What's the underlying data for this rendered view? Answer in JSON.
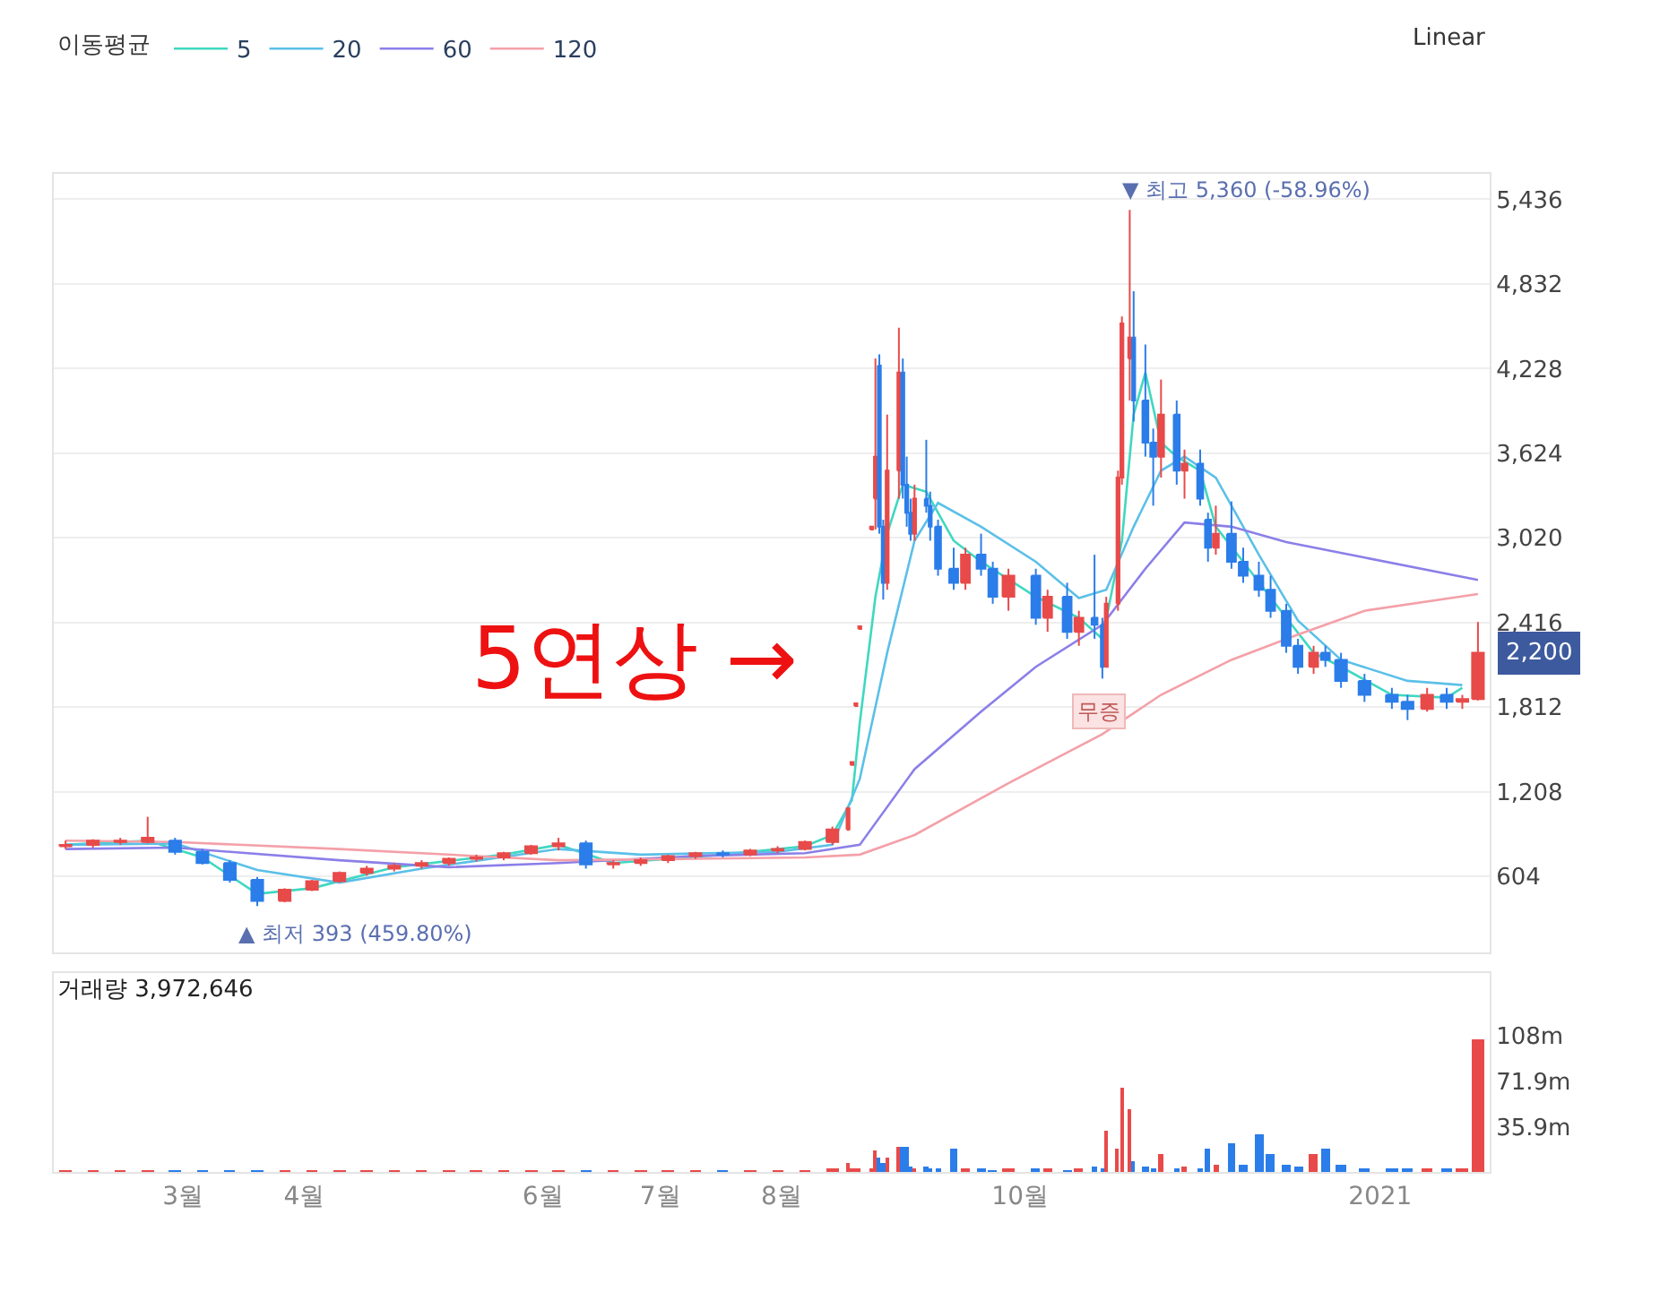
{
  "chart_data": [
    {
      "type": "candlestick",
      "legend_title": "이동평균",
      "legend": "top left",
      "grid": "y",
      "tick_labels": "y",
      "xlim": [
        "2020-01-28",
        "2021-01-29"
      ],
      "ylim": [
        60,
        5620
      ],
      "yticks": [
        {
          "value": 604,
          "label": "604"
        },
        {
          "value": 1208,
          "label": "1,208"
        },
        {
          "value": 1812,
          "label": "1,812"
        },
        {
          "value": 2416,
          "label": "2,416"
        },
        {
          "value": 3020,
          "label": "3,020"
        },
        {
          "value": 3624,
          "label": "3,624"
        },
        {
          "value": 4228,
          "label": "4,228"
        },
        {
          "value": 4832,
          "label": "4,832"
        },
        {
          "value": 5436,
          "label": "5,436"
        }
      ],
      "x": [
        "2020-01-31",
        "2020-02-07",
        "2020-02-14",
        "2020-02-21",
        "2020-02-28",
        "2020-03-06",
        "2020-03-13",
        "2020-03-20",
        "2020-03-27",
        "2020-04-03",
        "2020-04-10",
        "2020-04-17",
        "2020-04-24",
        "2020-05-01",
        "2020-05-08",
        "2020-05-15",
        "2020-05-22",
        "2020-05-29",
        "2020-06-05",
        "2020-06-12",
        "2020-06-19",
        "2020-06-26",
        "2020-07-03",
        "2020-07-10",
        "2020-07-17",
        "2020-07-24",
        "2020-07-31",
        "2020-08-07",
        "2020-08-14",
        "2020-08-18",
        "2020-08-19",
        "2020-08-20",
        "2020-08-21",
        "2020-08-24",
        "2020-08-25",
        "2020-08-26",
        "2020-08-27",
        "2020-08-28",
        "2020-08-31",
        "2020-09-01",
        "2020-09-02",
        "2020-09-03",
        "2020-09-04",
        "2020-09-07",
        "2020-09-08",
        "2020-09-10",
        "2020-09-14",
        "2020-09-17",
        "2020-09-21",
        "2020-09-24",
        "2020-09-28",
        "2020-10-05",
        "2020-10-08",
        "2020-10-13",
        "2020-10-16",
        "2020-10-20",
        "2020-10-22",
        "2020-10-23",
        "2020-10-26",
        "2020-10-27",
        "2020-10-29",
        "2020-10-30",
        "2020-11-02",
        "2020-11-04",
        "2020-11-06",
        "2020-11-10",
        "2020-11-12",
        "2020-11-16",
        "2020-11-18",
        "2020-11-20",
        "2020-11-24",
        "2020-11-27",
        "2020-12-01",
        "2020-12-04",
        "2020-12-08",
        "2020-12-11",
        "2020-12-15",
        "2020-12-18",
        "2020-12-22",
        "2020-12-28",
        "2021-01-04",
        "2021-01-08",
        "2021-01-13",
        "2021-01-18",
        "2021-01-22",
        "2021-01-26"
      ],
      "ohlc": [
        [
          820,
          860,
          800,
          830
        ],
        [
          830,
          870,
          810,
          860
        ],
        [
          850,
          880,
          830,
          860
        ],
        [
          850,
          1030,
          840,
          880
        ],
        [
          860,
          880,
          760,
          780
        ],
        [
          780,
          800,
          690,
          700
        ],
        [
          700,
          720,
          560,
          580
        ],
        [
          580,
          600,
          393,
          430
        ],
        [
          430,
          520,
          420,
          510
        ],
        [
          510,
          580,
          500,
          570
        ],
        [
          570,
          640,
          560,
          630
        ],
        [
          630,
          680,
          610,
          660
        ],
        [
          660,
          700,
          640,
          680
        ],
        [
          680,
          720,
          660,
          700
        ],
        [
          700,
          740,
          680,
          730
        ],
        [
          730,
          760,
          710,
          740
        ],
        [
          740,
          780,
          720,
          770
        ],
        [
          770,
          830,
          760,
          820
        ],
        [
          820,
          880,
          790,
          840
        ],
        [
          840,
          860,
          660,
          690
        ],
        [
          690,
          720,
          660,
          700
        ],
        [
          700,
          740,
          680,
          720
        ],
        [
          720,
          760,
          700,
          750
        ],
        [
          750,
          780,
          730,
          770
        ],
        [
          770,
          790,
          740,
          760
        ],
        [
          760,
          800,
          750,
          790
        ],
        [
          790,
          820,
          770,
          800
        ],
        [
          800,
          860,
          790,
          850
        ],
        [
          850,
          960,
          830,
          940
        ],
        [
          940,
          1100,
          930,
          1090
        ],
        [
          1400,
          1420,
          1400,
          1420
        ],
        [
          1820,
          1840,
          1820,
          1840
        ],
        [
          2370,
          2390,
          2370,
          2390
        ],
        [
          3080,
          3100,
          3080,
          3100
        ],
        [
          3300,
          4300,
          3080,
          3600
        ],
        [
          4250,
          4330,
          3050,
          3100
        ],
        [
          3100,
          3150,
          2580,
          2700
        ],
        [
          2700,
          3900,
          2650,
          3500
        ],
        [
          3500,
          4520,
          3300,
          4200
        ],
        [
          4200,
          4300,
          3300,
          3400
        ],
        [
          3400,
          3600,
          3100,
          3200
        ],
        [
          3200,
          3300,
          3000,
          3050
        ],
        [
          3050,
          3400,
          3000,
          3300
        ],
        [
          3300,
          3720,
          3200,
          3250
        ],
        [
          3250,
          3350,
          3000,
          3100
        ],
        [
          3100,
          3150,
          2750,
          2800
        ],
        [
          2800,
          2950,
          2650,
          2700
        ],
        [
          2700,
          2950,
          2650,
          2900
        ],
        [
          2900,
          3050,
          2750,
          2800
        ],
        [
          2800,
          2850,
          2550,
          2600
        ],
        [
          2600,
          2800,
          2500,
          2750
        ],
        [
          2750,
          2800,
          2400,
          2450
        ],
        [
          2450,
          2650,
          2350,
          2600
        ],
        [
          2600,
          2700,
          2300,
          2350
        ],
        [
          2350,
          2500,
          2250,
          2450
        ],
        [
          2450,
          2900,
          2300,
          2400
        ],
        [
          2400,
          2450,
          2016,
          2100
        ],
        [
          2100,
          2600,
          2100,
          2550
        ],
        [
          2550,
          3500,
          2500,
          3450
        ],
        [
          3450,
          4600,
          3400,
          4550
        ],
        [
          4300,
          5360,
          4000,
          4450
        ],
        [
          4450,
          4780,
          3850,
          4000
        ],
        [
          4000,
          4400,
          3600,
          3700
        ],
        [
          3700,
          3800,
          3250,
          3600
        ],
        [
          3600,
          4150,
          3450,
          3900
        ],
        [
          3900,
          4000,
          3400,
          3500
        ],
        [
          3500,
          3650,
          3300,
          3550
        ],
        [
          3550,
          3650,
          3250,
          3300
        ],
        [
          3150,
          3200,
          2850,
          2950
        ],
        [
          2950,
          3250,
          2900,
          3050
        ],
        [
          3050,
          3280,
          2800,
          2850
        ],
        [
          2850,
          2950,
          2700,
          2750
        ],
        [
          2750,
          2850,
          2600,
          2650
        ],
        [
          2650,
          2750,
          2450,
          2500
        ],
        [
          2500,
          2550,
          2200,
          2250
        ],
        [
          2250,
          2300,
          2050,
          2100
        ],
        [
          2100,
          2250,
          2050,
          2200
        ],
        [
          2200,
          2250,
          2100,
          2150
        ],
        [
          2150,
          2200,
          1950,
          2000
        ],
        [
          2000,
          2050,
          1850,
          1900
        ],
        [
          1900,
          1950,
          1800,
          1850
        ],
        [
          1850,
          1900,
          1720,
          1800
        ],
        [
          1800,
          1950,
          1780,
          1900
        ],
        [
          1900,
          1950,
          1800,
          1850
        ],
        [
          1850,
          1900,
          1800,
          1870
        ],
        [
          1870,
          2420,
          1860,
          2200
        ]
      ],
      "colors": [
        "#e84a4a",
        "#e84a4a",
        "#e84a4a",
        "#e84a4a",
        "#2b7de9",
        "#2b7de9",
        "#2b7de9",
        "#2b7de9",
        "#e84a4a",
        "#e84a4a",
        "#e84a4a",
        "#e84a4a",
        "#e84a4a",
        "#e84a4a",
        "#e84a4a",
        "#e84a4a",
        "#e84a4a",
        "#e84a4a",
        "#e84a4a",
        "#2b7de9",
        "#e84a4a",
        "#e84a4a",
        "#e84a4a",
        "#e84a4a",
        "#2b7de9",
        "#e84a4a",
        "#e84a4a",
        "#e84a4a",
        "#e84a4a",
        "#e84a4a",
        "#e84a4a",
        "#e84a4a",
        "#e84a4a",
        "#e84a4a",
        "#e84a4a",
        "#2b7de9",
        "#2b7de9",
        "#e84a4a",
        "#e84a4a",
        "#2b7de9",
        "#2b7de9",
        "#2b7de9",
        "#e84a4a",
        "#2b7de9",
        "#2b7de9",
        "#2b7de9",
        "#2b7de9",
        "#e84a4a",
        "#2b7de9",
        "#2b7de9",
        "#e84a4a",
        "#2b7de9",
        "#e84a4a",
        "#2b7de9",
        "#e84a4a",
        "#2b7de9",
        "#2b7de9",
        "#e84a4a",
        "#e84a4a",
        "#e84a4a",
        "#e84a4a",
        "#2b7de9",
        "#2b7de9",
        "#2b7de9",
        "#e84a4a",
        "#2b7de9",
        "#e84a4a",
        "#2b7de9",
        "#2b7de9",
        "#e84a4a",
        "#2b7de9",
        "#2b7de9",
        "#2b7de9",
        "#2b7de9",
        "#2b7de9",
        "#2b7de9",
        "#e84a4a",
        "#2b7de9",
        "#2b7de9",
        "#2b7de9",
        "#2b7de9",
        "#2b7de9",
        "#e84a4a",
        "#2b7de9",
        "#e84a4a",
        "#e84a4a"
      ],
      "series": [
        {
          "type": "line",
          "name": "5",
          "color": "#3fd8c0",
          "x": [
            "2020-01-31",
            "2020-02-21",
            "2020-03-06",
            "2020-03-20",
            "2020-04-03",
            "2020-04-24",
            "2020-05-22",
            "2020-06-05",
            "2020-06-19",
            "2020-07-17",
            "2020-08-07",
            "2020-08-14",
            "2020-08-19",
            "2020-08-21",
            "2020-08-25",
            "2020-08-28",
            "2020-09-01",
            "2020-09-07",
            "2020-09-14",
            "2020-09-21",
            "2020-10-05",
            "2020-10-16",
            "2020-10-22",
            "2020-10-27",
            "2020-10-30",
            "2020-11-02",
            "2020-11-06",
            "2020-11-10",
            "2020-11-16",
            "2020-11-20",
            "2020-11-27",
            "2020-12-08",
            "2020-12-15",
            "2020-12-22",
            "2021-01-04",
            "2021-01-18",
            "2021-01-22"
          ],
          "values": [
            830,
            860,
            740,
            480,
            520,
            670,
            760,
            830,
            700,
            760,
            820,
            900,
            1150,
            1700,
            2600,
            3050,
            3400,
            3350,
            3000,
            2850,
            2600,
            2450,
            2300,
            3000,
            3900,
            4200,
            3700,
            3600,
            3500,
            3100,
            2850,
            2450,
            2200,
            2100,
            1900,
            1880,
            1950
          ]
        },
        {
          "type": "line",
          "name": "20",
          "color": "#5bc0e8",
          "x": [
            "2020-01-31",
            "2020-02-28",
            "2020-03-20",
            "2020-04-10",
            "2020-05-01",
            "2020-06-05",
            "2020-06-26",
            "2020-07-31",
            "2020-08-14",
            "2020-08-21",
            "2020-08-28",
            "2020-09-04",
            "2020-09-10",
            "2020-09-21",
            "2020-10-05",
            "2020-10-16",
            "2020-10-23",
            "2020-10-30",
            "2020-11-06",
            "2020-11-12",
            "2020-11-20",
            "2020-12-01",
            "2020-12-11",
            "2020-12-22",
            "2021-01-08",
            "2021-01-22"
          ],
          "values": [
            830,
            840,
            650,
            560,
            660,
            800,
            760,
            780,
            830,
            1300,
            2200,
            3000,
            3270,
            3100,
            2850,
            2590,
            2650,
            3100,
            3500,
            3600,
            3450,
            2900,
            2430,
            2150,
            2000,
            1970
          ]
        },
        {
          "type": "line",
          "name": "60",
          "color": "#8b7fe8",
          "x": [
            "2020-01-31",
            "2020-02-28",
            "2020-04-10",
            "2020-05-08",
            "2020-06-05",
            "2020-07-10",
            "2020-08-07",
            "2020-08-21",
            "2020-09-04",
            "2020-09-21",
            "2020-10-05",
            "2020-10-22",
            "2020-11-02",
            "2020-11-12",
            "2020-11-24",
            "2020-12-08",
            "2020-12-28",
            "2021-01-26"
          ],
          "values": [
            800,
            810,
            720,
            670,
            700,
            750,
            770,
            830,
            1370,
            1780,
            2100,
            2400,
            2800,
            3130,
            3100,
            2990,
            2880,
            2720
          ]
        },
        {
          "type": "line",
          "name": "120",
          "color": "#f4a0a8",
          "x": [
            "2020-01-31",
            "2020-02-28",
            "2020-04-10",
            "2020-06-05",
            "2020-07-10",
            "2020-08-07",
            "2020-08-21",
            "2020-09-04",
            "2020-09-28",
            "2020-10-22",
            "2020-11-06",
            "2020-11-24",
            "2020-12-11",
            "2020-12-28",
            "2021-01-26"
          ],
          "values": [
            860,
            850,
            800,
            720,
            730,
            740,
            760,
            900,
            1270,
            1620,
            1900,
            2150,
            2330,
            2500,
            2620
          ]
        }
      ],
      "annotations": [
        "Linear",
        {
          "text": "▼ 최고 5,360 (-58.96%)",
          "x": "2020-10-29",
          "y": 5360
        },
        {
          "text": "▲ 최저 393 (459.80%)",
          "x": "2020-03-20",
          "y": 393
        },
        "5연상 →",
        {
          "text": "무증",
          "x": "2020-10-21",
          "y": 2266
        },
        "2,200"
      ]
    },
    {
      "type": "bar",
      "title": "거래량 3,972,646",
      "xlim": [
        "2020-01-28",
        "2021-01-29"
      ],
      "ylim": [
        0,
        157000000
      ],
      "xticks": [
        {
          "value": "2020-03-01",
          "label": "3월"
        },
        {
          "value": "2020-04-01",
          "label": "4월"
        },
        {
          "value": "2020-06-01",
          "label": "6월"
        },
        {
          "value": "2020-07-01",
          "label": "7월"
        },
        {
          "value": "2020-08-01",
          "label": "8월"
        },
        {
          "value": "2020-10-01",
          "label": "10월"
        },
        {
          "value": "2021-01-01",
          "label": "2021"
        }
      ],
      "yticks": [
        {
          "value": 35900000,
          "label": "35.9m"
        },
        {
          "value": 71900000,
          "label": "71.9m"
        },
        {
          "value": 108000000,
          "label": "108m"
        }
      ],
      "x": [
        "2020-01-31",
        "2020-02-07",
        "2020-02-14",
        "2020-02-21",
        "2020-02-28",
        "2020-03-06",
        "2020-03-13",
        "2020-03-20",
        "2020-03-27",
        "2020-04-03",
        "2020-04-10",
        "2020-04-17",
        "2020-04-24",
        "2020-05-01",
        "2020-05-08",
        "2020-05-15",
        "2020-05-22",
        "2020-05-29",
        "2020-06-05",
        "2020-06-12",
        "2020-06-19",
        "2020-06-26",
        "2020-07-03",
        "2020-07-10",
        "2020-07-17",
        "2020-07-24",
        "2020-07-31",
        "2020-08-07",
        "2020-08-14",
        "2020-08-18",
        "2020-08-19",
        "2020-08-20",
        "2020-08-21",
        "2020-08-24",
        "2020-08-25",
        "2020-08-26",
        "2020-08-27",
        "2020-08-28",
        "2020-08-31",
        "2020-09-01",
        "2020-09-02",
        "2020-09-03",
        "2020-09-04",
        "2020-09-07",
        "2020-09-08",
        "2020-09-10",
        "2020-09-14",
        "2020-09-17",
        "2020-09-21",
        "2020-09-24",
        "2020-09-28",
        "2020-10-05",
        "2020-10-08",
        "2020-10-13",
        "2020-10-16",
        "2020-10-20",
        "2020-10-22",
        "2020-10-23",
        "2020-10-26",
        "2020-10-27",
        "2020-10-29",
        "2020-10-30",
        "2020-11-02",
        "2020-11-04",
        "2020-11-06",
        "2020-11-10",
        "2020-11-12",
        "2020-11-16",
        "2020-11-18",
        "2020-11-20",
        "2020-11-24",
        "2020-11-27",
        "2020-12-01",
        "2020-12-04",
        "2020-12-08",
        "2020-12-11",
        "2020-12-15",
        "2020-12-18",
        "2020-12-22",
        "2020-12-28",
        "2021-01-04",
        "2021-01-08",
        "2021-01-13",
        "2021-01-18",
        "2021-01-22",
        "2021-01-26"
      ],
      "values": [
        1000000,
        1000000,
        1000000,
        1000000,
        1000000,
        1000000,
        1000000,
        1000000,
        1000000,
        1000000,
        1000000,
        1000000,
        1000000,
        1000000,
        1000000,
        1000000,
        1000000,
        1000000,
        1000000,
        1000000,
        1000000,
        1000000,
        1000000,
        1000000,
        1000000,
        1000000,
        1000000,
        1000000,
        2000000,
        7000000,
        3000000,
        2000000,
        2000000,
        2000000,
        17000000,
        11000000,
        7000000,
        11000000,
        20000000,
        20000000,
        20000000,
        4000000,
        3000000,
        4000000,
        2000000,
        3000000,
        18000000,
        2000000,
        2000000,
        1000000,
        2000000,
        2000000,
        2000000,
        1000000,
        2000000,
        4000000,
        3000000,
        32000000,
        18000000,
        67000000,
        49000000,
        8000000,
        4000000,
        3000000,
        14000000,
        3000000,
        4000000,
        3000000,
        18000000,
        6000000,
        22000000,
        5000000,
        30000000,
        14000000,
        5000000,
        4000000,
        14000000,
        18000000,
        5000000,
        3000000,
        2000000,
        3000000,
        2000000,
        2000000,
        2000000,
        104000000
      ],
      "colors": [
        "#e84a4a",
        "#e84a4a",
        "#e84a4a",
        "#e84a4a",
        "#2b7de9",
        "#2b7de9",
        "#2b7de9",
        "#2b7de9",
        "#e84a4a",
        "#e84a4a",
        "#e84a4a",
        "#e84a4a",
        "#e84a4a",
        "#e84a4a",
        "#e84a4a",
        "#e84a4a",
        "#e84a4a",
        "#e84a4a",
        "#e84a4a",
        "#2b7de9",
        "#e84a4a",
        "#e84a4a",
        "#e84a4a",
        "#e84a4a",
        "#2b7de9",
        "#e84a4a",
        "#e84a4a",
        "#e84a4a",
        "#e84a4a",
        "#e84a4a",
        "#e84a4a",
        "#e84a4a",
        "#e84a4a",
        "#e84a4a",
        "#e84a4a",
        "#2b7de9",
        "#2b7de9",
        "#e84a4a",
        "#e84a4a",
        "#2b7de9",
        "#2b7de9",
        "#2b7de9",
        "#e84a4a",
        "#2b7de9",
        "#2b7de9",
        "#2b7de9",
        "#2b7de9",
        "#e84a4a",
        "#2b7de9",
        "#2b7de9",
        "#e84a4a",
        "#2b7de9",
        "#e84a4a",
        "#2b7de9",
        "#e84a4a",
        "#2b7de9",
        "#2b7de9",
        "#e84a4a",
        "#e84a4a",
        "#e84a4a",
        "#e84a4a",
        "#2b7de9",
        "#2b7de9",
        "#2b7de9",
        "#e84a4a",
        "#2b7de9",
        "#e84a4a",
        "#2b7de9",
        "#2b7de9",
        "#e84a4a",
        "#2b7de9",
        "#2b7de9",
        "#2b7de9",
        "#2b7de9",
        "#2b7de9",
        "#2b7de9",
        "#e84a4a",
        "#2b7de9",
        "#2b7de9",
        "#2b7de9",
        "#2b7de9",
        "#2b7de9",
        "#e84a4a",
        "#2b7de9",
        "#e84a4a",
        "#e84a4a"
      ]
    }
  ]
}
